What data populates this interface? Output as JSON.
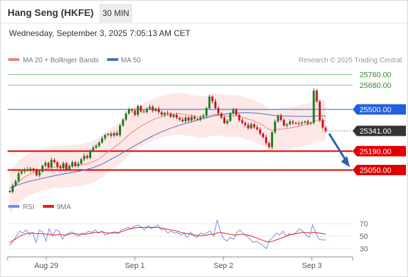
{
  "header": {
    "title": "Hang Seng (HKFE)",
    "timeframe": "30 MIN",
    "datetime": "Wednesday, September 3, 2025 7:05:13 AM CET"
  },
  "legend": {
    "ma20_bb": "MA 20 + Bollinger Bands",
    "ma50": "MA 50",
    "credit": "Research © 2025 Trading Central",
    "rsi": "RSI",
    "rsi_ma": "9MA"
  },
  "colors": {
    "ma20": "#f08080",
    "bollinger_fill": "#fde4e4",
    "ma50": "#4a6fc0",
    "up_candle": "#1f7a1f",
    "down_candle": "#c41a1a",
    "resistance_green": "#2e8b2e",
    "pivot_blue": "#1f5fe0",
    "support_red": "#e00000",
    "current_price_bg": "#333333",
    "rsi_line": "#7090e8",
    "rsi_ma_line": "#e02020"
  },
  "chart_data": [
    {
      "type": "candlestick",
      "y_range": [
        24840,
        25860
      ],
      "x_labels": [
        "Aug 29",
        "Sep 1",
        "Sep 2",
        "Sep 3"
      ],
      "levels": [
        {
          "value": 25760,
          "label": "25760.00",
          "kind": "resistance"
        },
        {
          "value": 25680,
          "label": "25680.00",
          "kind": "resistance"
        },
        {
          "value": 25500,
          "label": "25500.00",
          "kind": "pivot"
        },
        {
          "value": 25341,
          "label": "25341.00",
          "kind": "current"
        },
        {
          "value": 25190,
          "label": "25190.00",
          "kind": "support"
        },
        {
          "value": 25050,
          "label": "25050.00",
          "kind": "support"
        }
      ],
      "forecast_arrow": {
        "from": 25341,
        "to": 25050
      },
      "close_path": [
        24888,
        24935,
        24968,
        25025,
        25040,
        25055,
        25048,
        25060,
        25045,
        25010,
        25038,
        25082,
        25103,
        25070,
        25125,
        25108,
        25075,
        25063,
        25100,
        25055,
        25078,
        25108,
        25080,
        25098,
        25130,
        25155,
        25140,
        25195,
        25215,
        25230,
        25255,
        25285,
        25310,
        25318,
        25305,
        25325,
        25308,
        25380,
        25425,
        25470,
        25500,
        25490,
        25460,
        25525,
        25485,
        25480,
        25505,
        25520,
        25490,
        25505,
        25480,
        25460,
        25475,
        25468,
        25445,
        25460,
        25438,
        25425,
        25412,
        25440,
        25418,
        25445,
        25430,
        25425,
        25442,
        25455,
        25510,
        25595,
        25560,
        25510,
        25470,
        25440,
        25398,
        25415,
        25470,
        25498,
        25460,
        25420,
        25400,
        25385,
        25360,
        25390,
        25368,
        25352,
        25320,
        25295,
        25250,
        25220,
        25330,
        25410,
        25452,
        25422,
        25380,
        25390,
        25410,
        25400,
        25398,
        25395,
        25402,
        25410,
        25395,
        25400,
        25640,
        25560,
        25420,
        25365,
        25341
      ],
      "ma20": [
        24880,
        24910,
        24935,
        24960,
        24980,
        24998,
        25010,
        25022,
        25030,
        25036,
        25042,
        25050,
        25058,
        25063,
        25069,
        25072,
        25073,
        25074,
        25076,
        25076,
        25078,
        25080,
        25082,
        25084,
        25088,
        25092,
        25096,
        25103,
        25112,
        25122,
        25135,
        25150,
        25168,
        25186,
        25202,
        25218,
        25232,
        25250,
        25270,
        25292,
        25312,
        25330,
        25345,
        25362,
        25376,
        25388,
        25400,
        25412,
        25422,
        25432,
        25440,
        25446,
        25452,
        25458,
        25462,
        25466,
        25468,
        25468,
        25466,
        25462,
        25458,
        25454,
        25450,
        25446,
        25444,
        25442,
        25446,
        25454,
        25460,
        25462,
        25462,
        25460,
        25454,
        25450,
        25450,
        25452,
        25452,
        25448,
        25442,
        25436,
        25428,
        25422,
        25414,
        25404,
        25394,
        25382,
        25366,
        25350,
        25345,
        25347,
        25352,
        25355,
        25356,
        25358,
        25362,
        25366,
        25370,
        25374,
        25380,
        25386,
        25390,
        25394,
        25410,
        25420,
        25420,
        25417,
        25414
      ],
      "bollinger": {
        "upper_offset": 155,
        "lower_offset": 155
      },
      "ma50": [
        24915,
        24924,
        24933,
        24941,
        24948,
        24955,
        24962,
        24968,
        24973,
        24978,
        24983,
        24988,
        24993,
        24998,
        25003,
        25008,
        25012,
        25016,
        25020,
        25024,
        25028,
        25032,
        25036,
        25040,
        25045,
        25050,
        25055,
        25061,
        25068,
        25076,
        25085,
        25095,
        25106,
        25118,
        25130,
        25142,
        25154,
        25167,
        25180,
        25193,
        25206,
        25219,
        25231,
        25244,
        25256,
        25268,
        25280,
        25292,
        25303,
        25314,
        25324,
        25334,
        25343,
        25352,
        25360,
        25368,
        25376,
        25383,
        25390,
        25396,
        25402,
        25408,
        25414,
        25420,
        25426,
        25432,
        25438,
        25444,
        25450,
        25455,
        25459,
        25463,
        25466,
        25469,
        25471,
        25473,
        25474,
        25475,
        25476,
        25476,
        25476,
        25475,
        25474,
        25472,
        25470,
        25467,
        25464,
        25460,
        25457,
        25455,
        25454,
        25453,
        25452,
        25451,
        25450,
        25449,
        25448,
        25448,
        25448,
        25448,
        25448,
        25448,
        25450,
        25452,
        25452,
        25452,
        25451
      ]
    },
    {
      "type": "line",
      "title": "RSI",
      "y_range": [
        20,
        80
      ],
      "y_ticks": [
        70,
        50,
        30
      ],
      "series": [
        {
          "name": "RSI",
          "values": [
            35,
            42,
            50,
            58,
            55,
            60,
            52,
            56,
            40,
            60,
            57,
            42,
            62,
            50,
            60,
            58,
            45,
            52,
            55,
            57,
            52,
            50,
            55,
            54,
            58,
            56,
            60,
            55,
            58,
            52,
            54,
            56,
            57,
            54,
            60,
            62,
            64,
            62,
            66,
            68,
            64,
            60,
            67,
            62,
            65,
            68,
            60,
            62,
            55,
            58,
            55,
            56,
            52,
            54,
            48,
            56,
            50,
            48,
            55,
            53,
            56,
            58,
            50,
            76,
            58,
            46,
            42,
            48,
            45,
            56,
            60,
            54,
            50,
            45,
            40,
            42,
            38,
            35,
            30,
            44,
            48,
            55,
            52,
            58,
            50,
            54,
            52,
            56,
            62,
            58,
            52,
            48,
            68,
            55,
            45,
            44,
            44
          ]
        },
        {
          "name": "9MA",
          "values": [
            40,
            43,
            46,
            50,
            52,
            54,
            55,
            55,
            54,
            54,
            54,
            53,
            53,
            52,
            52,
            53,
            52,
            52,
            53,
            54,
            54,
            53,
            53,
            53,
            54,
            55,
            56,
            56,
            57,
            56,
            55,
            55,
            55,
            56,
            57,
            59,
            61,
            62,
            63,
            64,
            64,
            64,
            64,
            64,
            64,
            64,
            63,
            62,
            61,
            60,
            59,
            58,
            56,
            55,
            54,
            53,
            52,
            51,
            51,
            51,
            52,
            53,
            53,
            55,
            56,
            55,
            54,
            53,
            52,
            52,
            53,
            53,
            52,
            51,
            49,
            47,
            45,
            43,
            41,
            41,
            42,
            44,
            46,
            48,
            50,
            52,
            53,
            54,
            55,
            56,
            56,
            55,
            56,
            56,
            55,
            54,
            53
          ]
        }
      ]
    }
  ]
}
